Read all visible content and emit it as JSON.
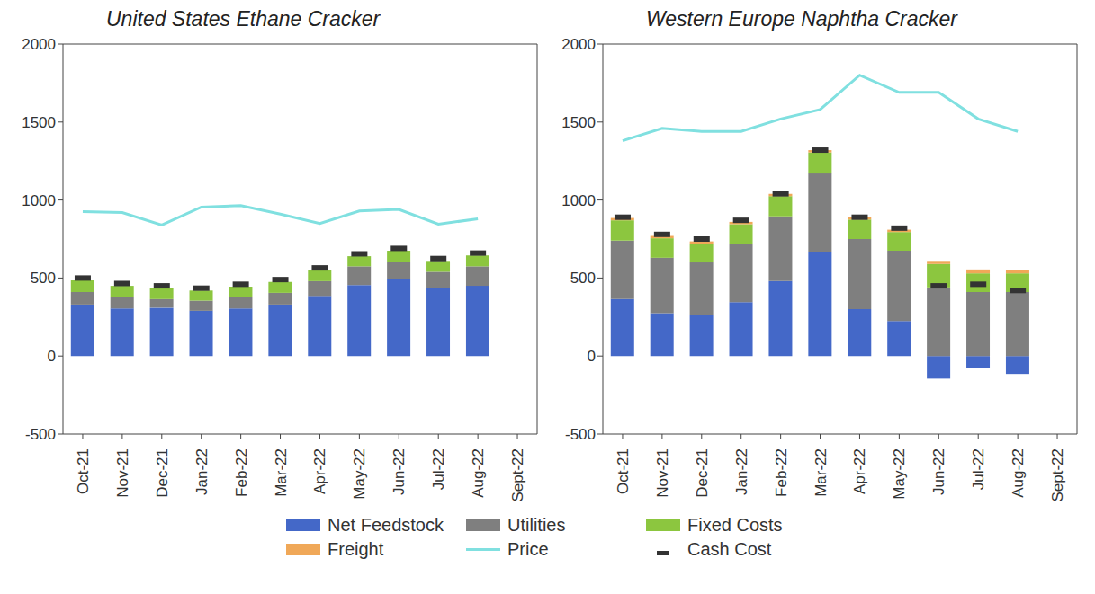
{
  "chart_data": [
    {
      "type": "bar",
      "title": "United States Ethane Cracker",
      "stacked": true,
      "legend": "bottom",
      "categories": [
        "Oct-21",
        "Nov-21",
        "Dec-21",
        "Jan-22",
        "Feb-22",
        "Mar-22",
        "Apr-22",
        "May-22",
        "Jun-22",
        "Jul-22",
        "Aug-22",
        "Sept-22"
      ],
      "ylim": [
        -500,
        2000
      ],
      "yticks": [
        -500,
        0,
        500,
        1000,
        1500,
        2000
      ],
      "series": [
        {
          "name": "Net Feedstock",
          "type": "bar",
          "color": "#4468c8",
          "values": [
            330,
            305,
            310,
            290,
            305,
            330,
            385,
            455,
            495,
            435,
            450,
            null
          ]
        },
        {
          "name": "Utilities",
          "type": "bar",
          "color": "#7f7f7f",
          "values": [
            80,
            75,
            55,
            65,
            75,
            75,
            95,
            120,
            110,
            105,
            125,
            null
          ]
        },
        {
          "name": "Fixed Costs",
          "type": "bar",
          "color": "#8cc63f",
          "values": [
            75,
            70,
            70,
            65,
            65,
            70,
            70,
            65,
            70,
            70,
            70,
            null
          ]
        },
        {
          "name": "Freight",
          "type": "bar",
          "color": "#f0a858",
          "values": [
            0,
            0,
            0,
            0,
            0,
            0,
            0,
            0,
            0,
            0,
            0,
            null
          ]
        },
        {
          "name": "Price",
          "type": "line",
          "color": "#80e0e0",
          "values": [
            925,
            920,
            840,
            955,
            965,
            910,
            850,
            930,
            940,
            845,
            880,
            null
          ]
        },
        {
          "name": "Cash Cost",
          "type": "scatter",
          "marker": "dash",
          "color": "#333333",
          "values": [
            500,
            465,
            450,
            435,
            460,
            490,
            565,
            655,
            690,
            625,
            660,
            null
          ]
        }
      ]
    },
    {
      "type": "bar",
      "title": "Western Europe Naphtha Cracker",
      "stacked": true,
      "legend": "bottom",
      "categories": [
        "Oct-21",
        "Nov-21",
        "Dec-21",
        "Jan-22",
        "Feb-22",
        "Mar-22",
        "Apr-22",
        "May-22",
        "Jun-22",
        "Jul-22",
        "Aug-22",
        "Sept-22"
      ],
      "ylim": [
        -500,
        2000
      ],
      "yticks": [
        -500,
        0,
        500,
        1000,
        1500,
        2000
      ],
      "series": [
        {
          "name": "Net Feedstock",
          "type": "bar",
          "color": "#4468c8",
          "values": [
            365,
            275,
            265,
            345,
            480,
            670,
            300,
            225,
            -145,
            -75,
            -115,
            null
          ]
        },
        {
          "name": "Utilities",
          "type": "bar",
          "color": "#7f7f7f",
          "values": [
            375,
            355,
            335,
            375,
            415,
            500,
            450,
            450,
            440,
            410,
            410,
            null
          ]
        },
        {
          "name": "Fixed Costs",
          "type": "bar",
          "color": "#8cc63f",
          "values": [
            130,
            125,
            120,
            125,
            130,
            135,
            125,
            120,
            150,
            120,
            120,
            null
          ]
        },
        {
          "name": "Freight",
          "type": "bar",
          "color": "#f0a858",
          "values": [
            15,
            15,
            15,
            15,
            15,
            15,
            15,
            15,
            20,
            25,
            20,
            null
          ]
        },
        {
          "name": "Price",
          "type": "line",
          "color": "#80e0e0",
          "values": [
            1380,
            1460,
            1440,
            1440,
            1520,
            1580,
            1800,
            1690,
            1690,
            1520,
            1440,
            null
          ]
        },
        {
          "name": "Cash Cost",
          "type": "scatter",
          "marker": "dash",
          "color": "#333333",
          "values": [
            890,
            780,
            750,
            870,
            1040,
            1320,
            890,
            820,
            450,
            460,
            420,
            null
          ]
        }
      ]
    }
  ]
}
